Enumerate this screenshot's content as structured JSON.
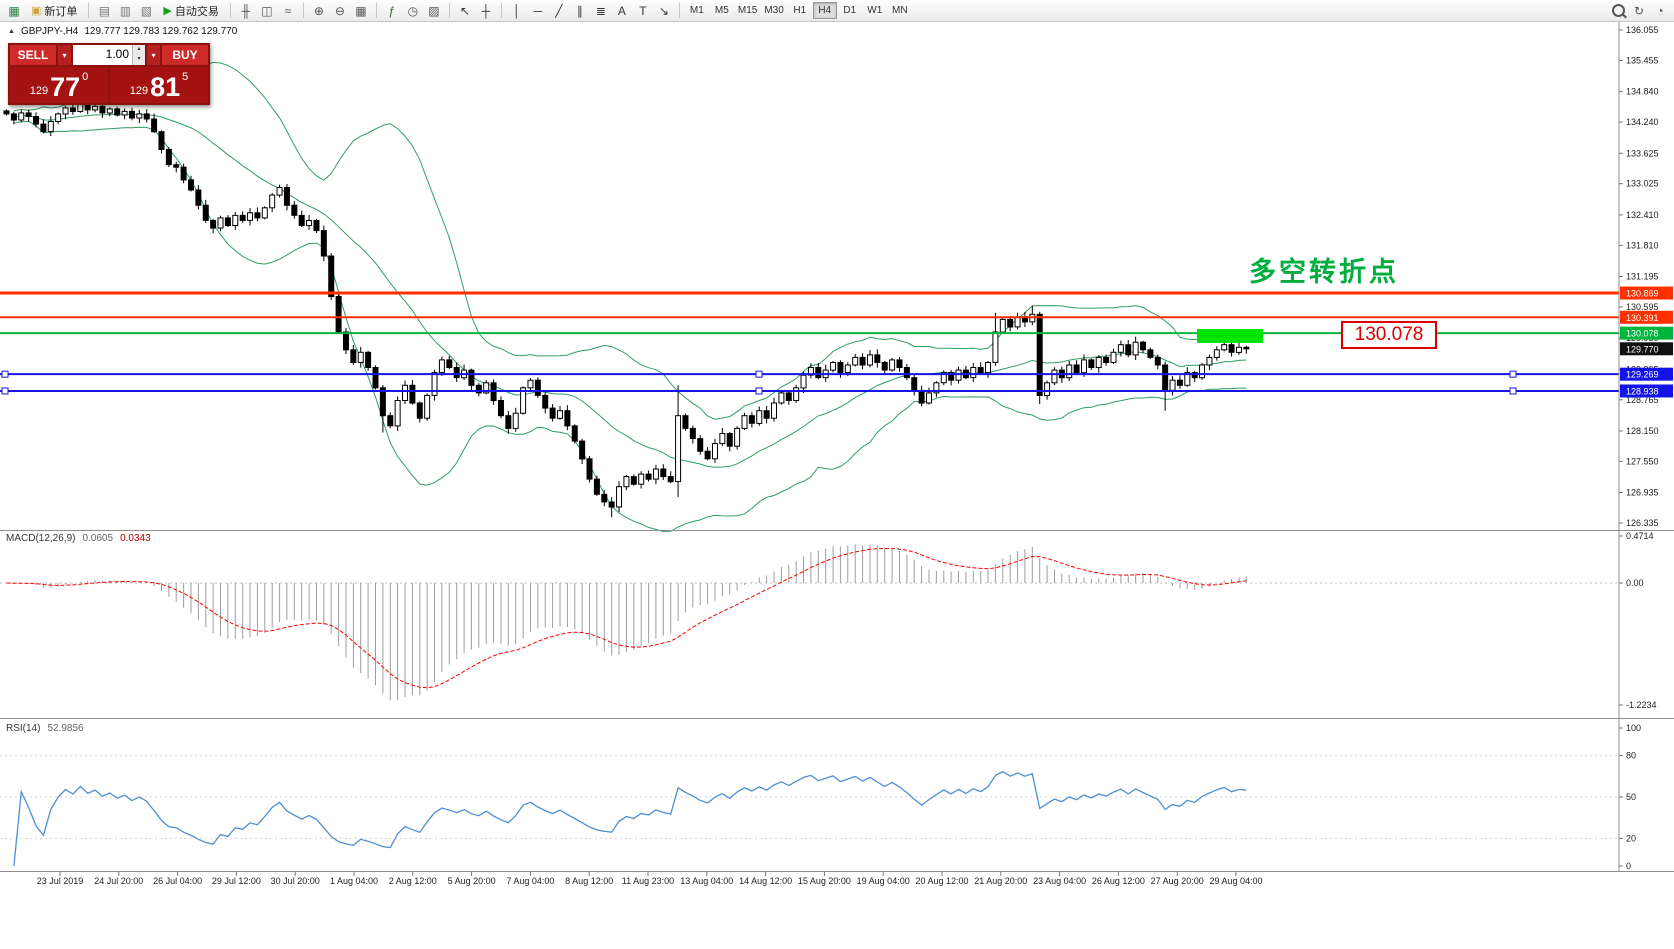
{
  "toolbar": {
    "timeframes": [
      "M1",
      "M5",
      "M15",
      "M30",
      "H1",
      "H4",
      "D1",
      "W1",
      "MN"
    ],
    "active_timeframe": "H4",
    "items": [
      {
        "icon": "new-chart-icon",
        "glyph": "▦",
        "color": "#2a7f3f"
      },
      {
        "button": "new-order",
        "icon": "new-order-icon",
        "glyph": "▣",
        "color": "#caa53d",
        "label": "新订单"
      },
      {
        "sep": 1
      },
      {
        "icon": "market-watch-icon",
        "glyph": "▤",
        "color": "#777777"
      },
      {
        "icon": "data-window-icon",
        "glyph": "▥",
        "color": "#777777"
      },
      {
        "icon": "navigator-icon",
        "glyph": "▧",
        "color": "#777777"
      },
      {
        "button": "auto-trading",
        "icon": "play-icon",
        "glyph": "▶",
        "color": "#18a018",
        "label": "自动交易"
      },
      {
        "sep": 1
      },
      {
        "icon": "bar-chart-icon",
        "glyph": "╫",
        "color": "#555555"
      },
      {
        "icon": "candlestick-chart-icon",
        "glyph": "◫",
        "color": "#555555"
      },
      {
        "icon": "line-chart-icon",
        "glyph": "≈",
        "color": "#555555"
      },
      {
        "sep": 1
      },
      {
        "icon": "zoom-in-icon",
        "glyph": "⊕",
        "color": "#555555"
      },
      {
        "icon": "zoom-out-icon",
        "glyph": "⊖",
        "color": "#555555"
      },
      {
        "icon": "tile-windows-icon",
        "glyph": "▦",
        "color": "#555555"
      },
      {
        "sep": 1
      },
      {
        "icon": "indicators-icon",
        "glyph": "ƒ",
        "color": "#2f6e2f"
      },
      {
        "icon": "periods-icon",
        "glyph": "◷",
        "color": "#555555"
      },
      {
        "icon": "templates-icon",
        "glyph": "▨",
        "color": "#555555"
      },
      {
        "sep": 1
      },
      {
        "icon": "cursor-icon",
        "glyph": "↖",
        "color": "#333333"
      },
      {
        "icon": "crosshair-icon",
        "glyph": "┼",
        "color": "#333333"
      },
      {
        "sep": 1
      },
      {
        "icon": "vertical-line-icon",
        "glyph": "│",
        "color": "#333333"
      },
      {
        "icon": "horizontal-line-icon",
        "glyph": "─",
        "color": "#333333"
      },
      {
        "icon": "trendline-icon",
        "glyph": "╱",
        "color": "#333333"
      },
      {
        "icon": "channel-icon",
        "glyph": "∥",
        "color": "#333333"
      },
      {
        "icon": "fibonacci-icon",
        "glyph": "≣",
        "color": "#333333"
      },
      {
        "icon": "text-icon",
        "glyph": "A",
        "color": "#333333"
      },
      {
        "icon": "text-label-icon",
        "glyph": "T",
        "color": "#333333"
      },
      {
        "icon": "arrows-icon",
        "glyph": "↘",
        "color": "#333333"
      },
      {
        "sep": 1
      },
      {
        "tf": 1
      },
      {
        "spacer": 1
      },
      {
        "icon": "search-icon",
        "css": "mag"
      },
      {
        "icon": "refresh-icon",
        "glyph": "↻",
        "color": "#555555"
      },
      {
        "icon": "assistant-icon",
        "glyph": "◔",
        "color": "#555555"
      }
    ]
  },
  "chart_header": {
    "title": "GBPJPY-,H4",
    "ohlc": "129.777 129.783 129.762 129.770"
  },
  "trade_panel": {
    "sell_label": "SELL",
    "buy_label": "BUY",
    "volume": "1.00",
    "sell_price_main": "129",
    "sell_price_big": "77",
    "sell_price_sup": "0",
    "buy_price_main": "129",
    "buy_price_big": "81",
    "buy_price_sup": "5"
  },
  "annotations": {
    "turning_point": "多空转折点",
    "key_price_label": "130.078"
  },
  "indicators": {
    "macd_label": "MACD(12,26,9)",
    "macd_value": "0.0605",
    "macd_signal": "0.0343",
    "macd_axis": [
      "0.4714",
      "0.00",
      "-1.2234"
    ],
    "rsi_label": "RSI(14)",
    "rsi_value": "52.9856",
    "rsi_axis": [
      "100",
      "80",
      "50",
      "20",
      "0"
    ]
  },
  "chart_data": {
    "type": "candlestick",
    "symbol": "GBPJPY-",
    "timeframe": "H4",
    "ohlc_display": {
      "open": "129.777",
      "high": "129.783",
      "low": "129.762",
      "close": "129.770"
    },
    "price_axis_labels": [
      "136.055",
      "135.455",
      "134.840",
      "134.240",
      "133.625",
      "133.025",
      "132.410",
      "131.810",
      "131.195",
      "130.595",
      "129.980",
      "129.365",
      "128.765",
      "128.150",
      "127.550",
      "126.935",
      "126.335"
    ],
    "time_axis_labels": [
      "23 Jul 2019",
      "24 Jul 20:00",
      "26 Jul 04:00",
      "29 Jul 12:00",
      "30 Jul 20:00",
      "1 Aug 04:00",
      "2 Aug 12:00",
      "5 Aug 20:00",
      "7 Aug 04:00",
      "8 Aug 12:00",
      "11 Aug 23:00",
      "13 Aug 04:00",
      "14 Aug 12:00",
      "15 Aug 20:00",
      "19 Aug 04:00",
      "20 Aug 12:00",
      "21 Aug 20:00",
      "23 Aug 04:00",
      "26 Aug 12:00",
      "27 Aug 20:00",
      "29 Aug 04:00"
    ],
    "closes": [
      134.4,
      134.28,
      134.42,
      134.35,
      134.2,
      134.05,
      134.25,
      134.4,
      134.52,
      134.45,
      134.6,
      134.48,
      134.55,
      134.42,
      134.5,
      134.38,
      134.45,
      134.32,
      134.4,
      134.3,
      134.05,
      133.7,
      133.4,
      133.35,
      133.1,
      132.9,
      132.6,
      132.3,
      132.15,
      132.35,
      132.2,
      132.4,
      132.3,
      132.45,
      132.35,
      132.55,
      132.8,
      132.95,
      132.6,
      132.4,
      132.2,
      132.3,
      132.1,
      131.6,
      130.8,
      130.1,
      129.75,
      129.5,
      129.7,
      129.4,
      129.0,
      128.45,
      128.25,
      128.75,
      129.05,
      128.7,
      128.4,
      128.85,
      129.3,
      129.55,
      129.4,
      129.2,
      129.35,
      129.05,
      128.9,
      129.1,
      128.75,
      128.45,
      128.2,
      128.5,
      129.0,
      129.15,
      128.85,
      128.6,
      128.4,
      128.55,
      128.25,
      127.95,
      127.6,
      127.2,
      126.9,
      126.75,
      126.65,
      127.05,
      127.25,
      127.1,
      127.3,
      127.2,
      127.4,
      127.25,
      127.15,
      128.45,
      128.2,
      128.0,
      127.75,
      127.6,
      127.9,
      128.1,
      127.85,
      128.2,
      128.45,
      128.3,
      128.55,
      128.4,
      128.7,
      128.9,
      128.75,
      129.0,
      129.25,
      129.4,
      129.2,
      129.35,
      129.5,
      129.3,
      129.45,
      129.6,
      129.45,
      129.65,
      129.5,
      129.35,
      129.55,
      129.4,
      129.2,
      128.95,
      128.7,
      128.9,
      129.1,
      129.3,
      129.15,
      129.35,
      129.2,
      129.4,
      129.3,
      129.5,
      130.1,
      130.35,
      130.2,
      130.4,
      130.3,
      130.45,
      128.85,
      129.1,
      129.35,
      129.2,
      129.45,
      129.3,
      129.55,
      129.4,
      129.6,
      129.5,
      129.7,
      129.85,
      129.65,
      129.9,
      129.75,
      129.6,
      129.45,
      128.95,
      129.15,
      129.05,
      129.3,
      129.2,
      129.45,
      129.6,
      129.75,
      129.85,
      129.7,
      129.8,
      129.77
    ],
    "wick_overrides": {
      "43": {
        "high": 132.2
      },
      "51": {
        "low": 128.12
      },
      "82": {
        "low": 126.45
      },
      "91": {
        "high": 129.05,
        "low": 126.85
      },
      "134": {
        "high": 130.48
      },
      "139": {
        "high": 130.62
      },
      "140": {
        "high": 130.5,
        "low": 128.68
      },
      "157": {
        "low": 128.55
      }
    },
    "hlines": [
      {
        "price": 130.869,
        "label": "130.869",
        "color": "#ff3000",
        "width": 3
      },
      {
        "price": 130.391,
        "label": "130.391",
        "color": "#ff3000",
        "width": 2
      },
      {
        "price": 130.078,
        "label": "130.078",
        "color": "#00b43c",
        "width": 2
      },
      {
        "price": 129.269,
        "label": "129.269",
        "color": "#1414e8",
        "width": 2,
        "handles": true
      },
      {
        "price": 128.938,
        "label": "128.938",
        "color": "#1414e8",
        "width": 2,
        "handles": true
      }
    ],
    "current_price": {
      "value": 129.77,
      "label": "129.770"
    },
    "highlight_rect": {
      "price_top": 130.16,
      "price_bottom": 129.885,
      "color": "#00e400"
    },
    "bollinger": {
      "period": 20,
      "deviation": 2,
      "color": "#2f9e63"
    },
    "macd": {
      "fast": 12,
      "slow": 26,
      "signal": 9
    },
    "rsi": {
      "period": 14
    }
  }
}
